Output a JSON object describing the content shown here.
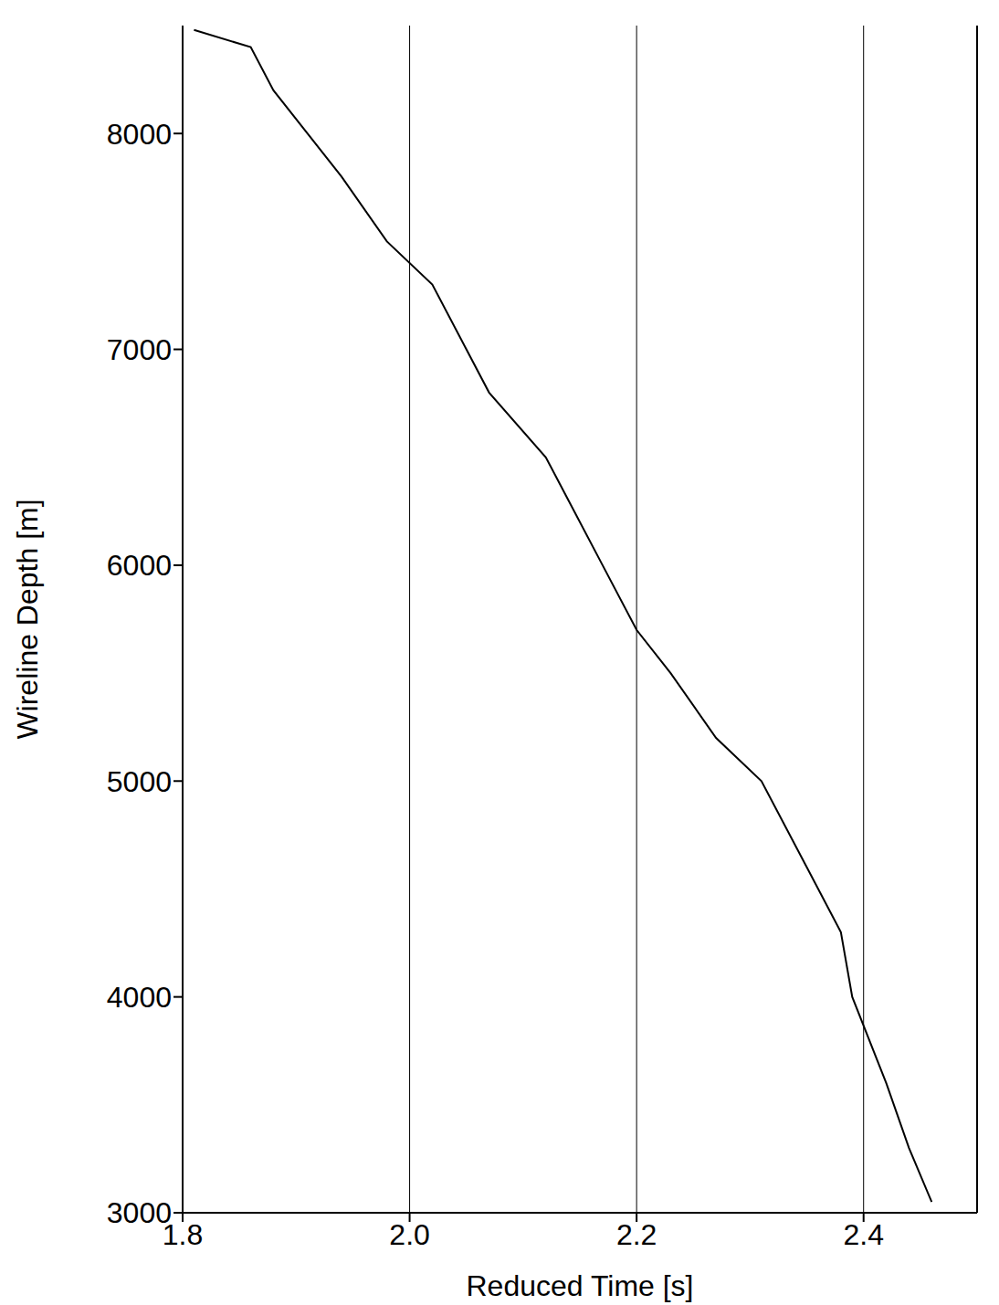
{
  "chart_data": {
    "type": "line",
    "xlabel": "Reduced Time [s]",
    "ylabel": "Wireline Depth [m]",
    "x": [
      2.46,
      2.44,
      2.42,
      2.39,
      2.38,
      2.35,
      2.31,
      2.27,
      2.23,
      2.2,
      2.17,
      2.14,
      2.12,
      2.07,
      2.05,
      2.02,
      1.98,
      1.94,
      1.91,
      1.88,
      1.86,
      1.81
    ],
    "values": [
      3050,
      3300,
      3600,
      4000,
      4300,
      4600,
      5000,
      5200,
      5500,
      5700,
      6000,
      6300,
      6500,
      6800,
      7000,
      7300,
      7500,
      7800,
      8000,
      8200,
      8400,
      8480
    ],
    "color": "#000000",
    "line_style": "solid",
    "xlim": [
      1.8,
      2.5
    ],
    "ylim": [
      3000,
      8500
    ],
    "xticks": [
      1.8,
      {
        "value": 2,
        "label": "2.0"
      },
      2.2,
      2.4
    ],
    "yticks": [
      3000,
      4000,
      5000,
      6000,
      7000,
      8000
    ],
    "grid": "x"
  }
}
